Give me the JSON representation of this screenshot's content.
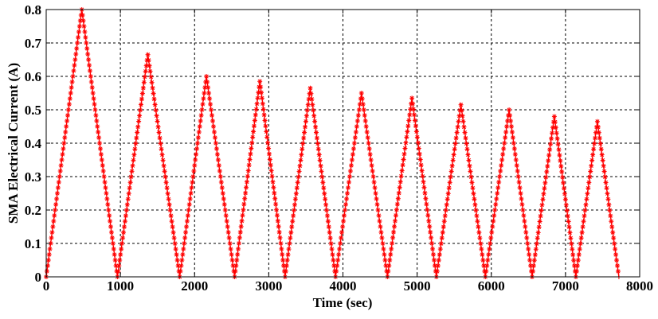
{
  "chart_data": {
    "type": "line",
    "title": "",
    "xlabel": "Time (sec)",
    "ylabel": "SMA Electrical Current (A)",
    "xlim": [
      0,
      8000
    ],
    "ylim": [
      0,
      0.8
    ],
    "xticks": [
      0,
      1000,
      2000,
      3000,
      4000,
      5000,
      6000,
      7000,
      8000
    ],
    "yticks": [
      0,
      0.1,
      0.2,
      0.3,
      0.4,
      0.5,
      0.6,
      0.7,
      0.8
    ],
    "xtick_labels": [
      "0",
      "1000",
      "2000",
      "3000",
      "4000",
      "5000",
      "6000",
      "7000",
      "8000"
    ],
    "ytick_labels": [
      "0",
      "0.1",
      "0.2",
      "0.3",
      "0.4",
      "0.5",
      "0.6",
      "0.7",
      "0.8"
    ],
    "grid": true,
    "legend": "none",
    "marker": "star",
    "color": "#ff0000",
    "series": [
      {
        "x": [
          0,
          480,
          960,
          1370,
          1800,
          2160,
          2540,
          2880,
          3220,
          3560,
          3900,
          4250,
          4600,
          4930,
          5260,
          5590,
          5920,
          6240,
          6550,
          6850,
          7140,
          7430,
          7720
        ],
        "y": [
          0,
          0.8,
          0,
          0.665,
          0,
          0.6,
          0,
          0.585,
          0,
          0.565,
          0,
          0.55,
          0,
          0.535,
          0,
          0.515,
          0,
          0.5,
          0,
          0.48,
          0,
          0.465,
          0
        ]
      }
    ]
  }
}
